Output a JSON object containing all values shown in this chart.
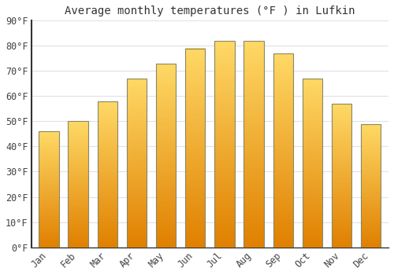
{
  "title": "Average monthly temperatures (°F ) in Lufkin",
  "months": [
    "Jan",
    "Feb",
    "Mar",
    "Apr",
    "May",
    "Jun",
    "Jul",
    "Aug",
    "Sep",
    "Oct",
    "Nov",
    "Dec"
  ],
  "values": [
    46,
    50,
    58,
    67,
    73,
    79,
    82,
    82,
    77,
    67,
    57,
    49
  ],
  "bar_color_top": "#FFD966",
  "bar_color_bottom": "#E08000",
  "bar_edge_color": "#888866",
  "ylim": [
    0,
    90
  ],
  "yticks": [
    0,
    10,
    20,
    30,
    40,
    50,
    60,
    70,
    80,
    90
  ],
  "ytick_labels": [
    "0°F",
    "10°F",
    "20°F",
    "30°F",
    "40°F",
    "50°F",
    "60°F",
    "70°F",
    "80°F",
    "90°F"
  ],
  "background_color": "#FFFFFF",
  "grid_color": "#E0E0E8",
  "title_fontsize": 10,
  "tick_fontsize": 8.5
}
